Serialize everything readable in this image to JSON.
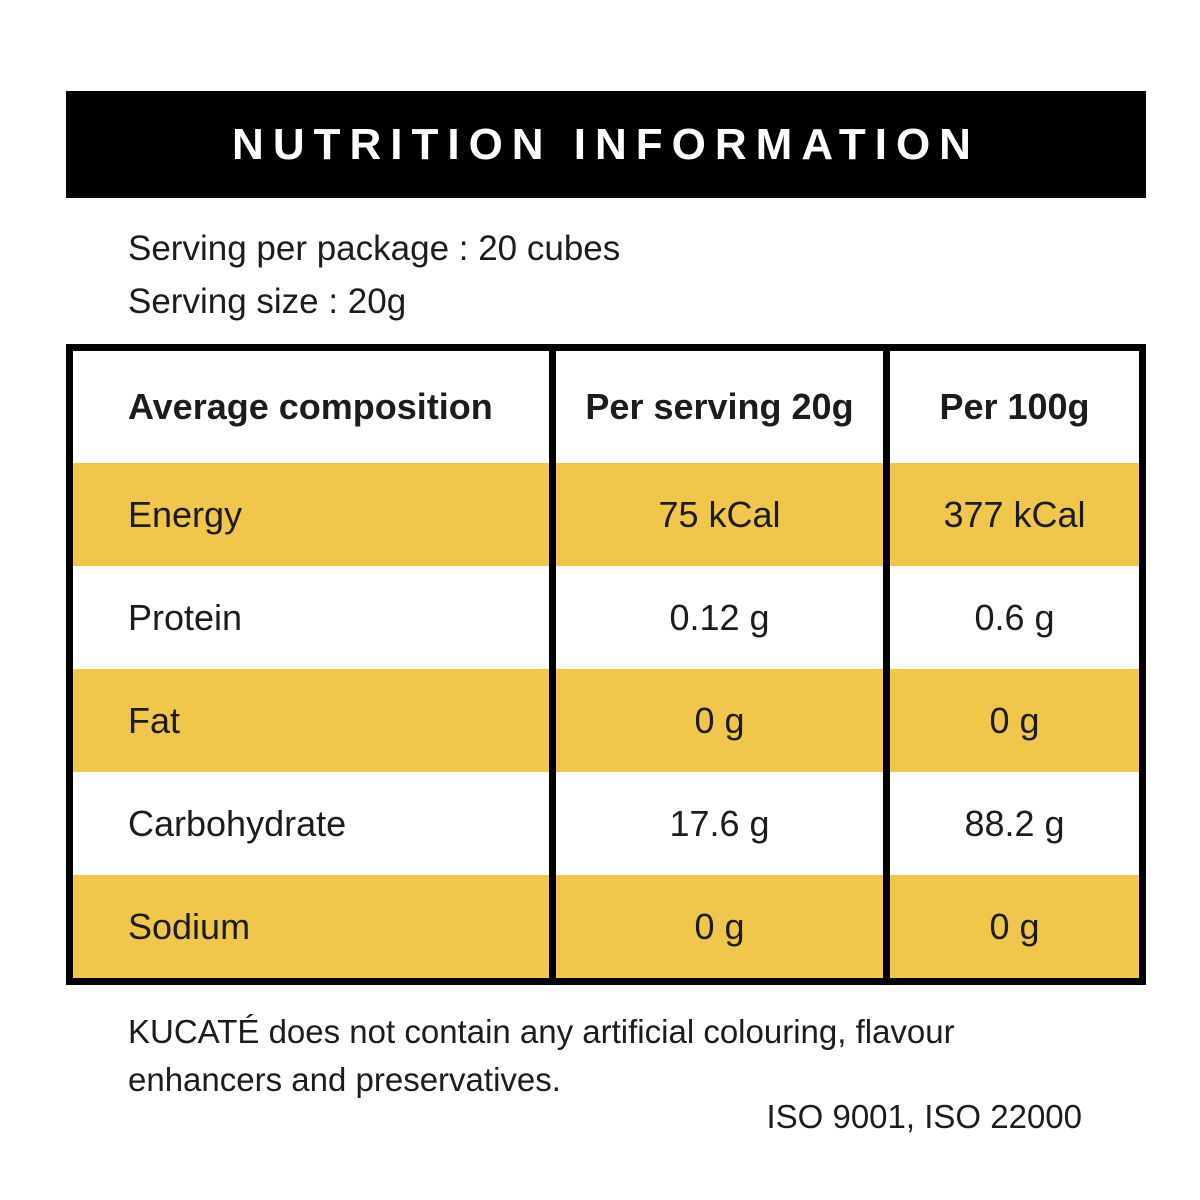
{
  "header": {
    "title": "NUTRITION INFORMATION"
  },
  "serving": {
    "per_package": "Serving per package : 20 cubes",
    "size": "Serving size : 20g"
  },
  "table": {
    "columns": [
      "Average composition",
      "Per serving 20g",
      "Per 100g"
    ],
    "rows": [
      {
        "name": "Energy",
        "per_serving": "75 kCal",
        "per_100g": "377 kCal"
      },
      {
        "name": "Protein",
        "per_serving": "0.12 g",
        "per_100g": "0.6 g"
      },
      {
        "name": "Fat",
        "per_serving": "0 g",
        "per_100g": "0 g"
      },
      {
        "name": "Carbohydrate",
        "per_serving": "17.6 g",
        "per_100g": "88.2 g"
      },
      {
        "name": "Sodium",
        "per_serving": "0 g",
        "per_100g": "0 g"
      }
    ]
  },
  "footer": {
    "disclaimer": "KUCATÉ does not contain any artificial colouring, flavour enhancers and preservatives.",
    "certifications": "ISO 9001, ISO 22000"
  },
  "colors": {
    "accent_yellow": "#F0C74B",
    "bar_black": "#000000"
  }
}
